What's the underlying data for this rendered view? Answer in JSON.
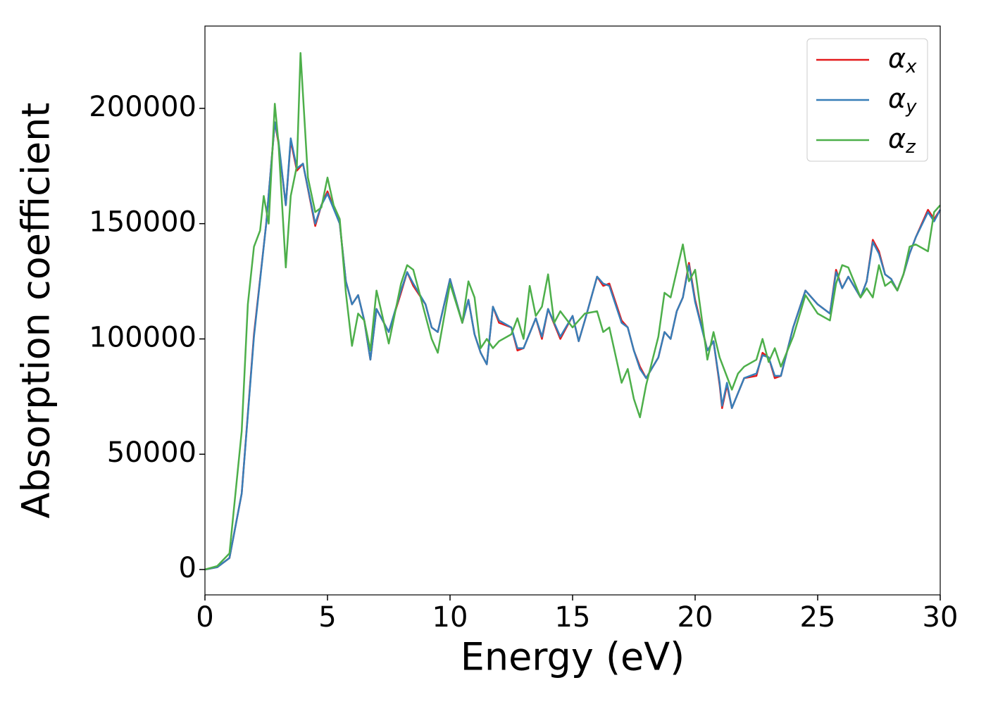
{
  "chart_data": {
    "type": "line",
    "xlabel": "Energy (eV)",
    "ylabel": "Absorption coefficient",
    "xlim": [
      0,
      30
    ],
    "xticks": [
      0,
      5,
      10,
      15,
      20,
      25,
      30
    ],
    "ylim": [
      -11000,
      235700
    ],
    "yticks": [
      0,
      50000,
      100000,
      150000,
      200000
    ],
    "legend": "upper right",
    "series": [
      {
        "name": "αx",
        "color": "#e41a1c",
        "x": [
          0,
          0.5,
          1,
          1.5,
          2,
          2.5,
          2.85,
          3,
          3.3,
          3.5,
          3.75,
          4,
          4.5,
          4.75,
          5,
          5.5,
          5.75,
          6,
          6.25,
          6.5,
          6.75,
          7,
          7.5,
          8,
          8.25,
          8.5,
          9,
          9.25,
          9.5,
          10,
          10.5,
          10.75,
          11,
          11.25,
          11.5,
          11.75,
          12,
          12.5,
          12.75,
          13,
          13.5,
          13.75,
          14,
          14.5,
          15,
          15.25,
          15.5,
          16,
          16.25,
          16.5,
          17,
          17.25,
          17.5,
          17.75,
          18,
          18.5,
          18.75,
          19,
          19.25,
          19.5,
          19.75,
          20,
          20.5,
          20.75,
          21,
          21.1,
          21.3,
          21.5,
          22,
          22.5,
          22.75,
          23,
          23.25,
          23.5,
          24,
          24.5,
          25,
          25.5,
          25.75,
          26,
          26.25,
          26.75,
          27,
          27.25,
          27.5,
          27.75,
          28,
          28.25,
          28.5,
          28.75,
          29,
          29.5,
          29.75,
          30
        ],
        "values": [
          0,
          1000,
          5000,
          33000,
          102000,
          150000,
          194000,
          185000,
          158000,
          186000,
          173000,
          176000,
          149000,
          158000,
          164000,
          150000,
          125000,
          115000,
          119000,
          108000,
          91000,
          113000,
          103000,
          120000,
          129000,
          123000,
          115000,
          105000,
          103000,
          126000,
          107000,
          117000,
          102000,
          94000,
          89000,
          114000,
          107000,
          105000,
          95000,
          96000,
          109000,
          100000,
          113000,
          100000,
          110000,
          99000,
          108000,
          127000,
          123000,
          124000,
          108000,
          105000,
          95000,
          88000,
          83000,
          92000,
          103000,
          100000,
          112000,
          118000,
          133000,
          117000,
          95000,
          99000,
          80000,
          70000,
          80000,
          70000,
          83000,
          84000,
          94000,
          92000,
          83000,
          84000,
          105000,
          121000,
          115000,
          111000,
          130000,
          122000,
          127000,
          118000,
          125000,
          143000,
          138000,
          128000,
          126000,
          121000,
          128000,
          137000,
          144000,
          156000,
          152000,
          156000
        ]
      },
      {
        "name": "αy",
        "color": "#377eb8",
        "x": [
          0,
          0.5,
          1,
          1.5,
          2,
          2.5,
          2.85,
          3,
          3.3,
          3.5,
          3.75,
          4,
          4.5,
          4.75,
          5,
          5.5,
          5.75,
          6,
          6.25,
          6.5,
          6.75,
          7,
          7.5,
          8,
          8.25,
          8.5,
          9,
          9.25,
          9.5,
          10,
          10.5,
          10.75,
          11,
          11.25,
          11.5,
          11.75,
          12,
          12.5,
          12.75,
          13,
          13.5,
          13.75,
          14,
          14.5,
          15,
          15.25,
          15.5,
          16,
          16.25,
          16.5,
          17,
          17.25,
          17.5,
          17.75,
          18,
          18.5,
          18.75,
          19,
          19.25,
          19.5,
          19.75,
          20,
          20.5,
          20.75,
          21,
          21.1,
          21.3,
          21.5,
          22,
          22.5,
          22.75,
          23,
          23.25,
          23.5,
          24,
          24.5,
          25,
          25.5,
          25.75,
          26,
          26.25,
          26.75,
          27,
          27.25,
          27.5,
          27.75,
          28,
          28.25,
          28.5,
          28.75,
          29,
          29.5,
          29.75,
          30
        ],
        "values": [
          0,
          1000,
          5000,
          33000,
          101000,
          150000,
          194000,
          186000,
          158000,
          187000,
          174000,
          176000,
          150000,
          158000,
          163000,
          150000,
          125000,
          115000,
          119000,
          108000,
          91000,
          113000,
          103000,
          121000,
          129000,
          124000,
          115000,
          105000,
          103000,
          126000,
          107000,
          117000,
          102000,
          94000,
          89000,
          114000,
          108000,
          105000,
          96000,
          96000,
          109000,
          101000,
          113000,
          101000,
          110000,
          99000,
          108000,
          127000,
          124000,
          123000,
          107000,
          105000,
          95000,
          87000,
          83000,
          92000,
          103000,
          100000,
          112000,
          118000,
          132000,
          116000,
          95000,
          99000,
          81000,
          71000,
          81000,
          70000,
          83000,
          85000,
          93000,
          92000,
          84000,
          84000,
          105000,
          121000,
          115000,
          111000,
          129000,
          122000,
          127000,
          118000,
          125000,
          142000,
          137000,
          128000,
          126000,
          121000,
          128000,
          137000,
          144000,
          155000,
          151000,
          156000
        ]
      },
      {
        "name": "αz",
        "color": "#4daf4a",
        "x": [
          0,
          0.5,
          1,
          1.5,
          1.75,
          2,
          2.25,
          2.4,
          2.6,
          2.85,
          3,
          3.3,
          3.5,
          3.75,
          3.9,
          4.2,
          4.5,
          4.75,
          5,
          5.25,
          5.5,
          5.75,
          6,
          6.25,
          6.5,
          6.75,
          7,
          7.5,
          8,
          8.25,
          8.5,
          9,
          9.25,
          9.5,
          10,
          10.5,
          10.75,
          11,
          11.25,
          11.5,
          11.75,
          12,
          12.5,
          12.75,
          13,
          13.25,
          13.5,
          13.75,
          14,
          14.25,
          14.5,
          15,
          15.5,
          16,
          16.25,
          16.5,
          17,
          17.25,
          17.5,
          17.75,
          18,
          18.5,
          18.75,
          19,
          19.5,
          19.75,
          20,
          20.5,
          20.75,
          21,
          21.5,
          21.75,
          22,
          22.5,
          22.75,
          23,
          23.25,
          23.5,
          24,
          24.5,
          25,
          25.5,
          25.75,
          26,
          26.25,
          26.75,
          27,
          27.25,
          27.5,
          27.75,
          28,
          28.25,
          28.5,
          28.75,
          29,
          29.5,
          29.75,
          30
        ],
        "values": [
          0,
          1500,
          7000,
          60000,
          115000,
          140000,
          147000,
          162000,
          150000,
          202000,
          185000,
          131000,
          162000,
          175000,
          224000,
          170000,
          155000,
          157000,
          170000,
          158000,
          152000,
          120000,
          97000,
          111000,
          108000,
          95000,
          121000,
          98000,
          124000,
          132000,
          130000,
          110000,
          100000,
          94000,
          124000,
          107000,
          125000,
          118000,
          96000,
          100000,
          96000,
          99000,
          102000,
          109000,
          100000,
          123000,
          110000,
          114000,
          128000,
          107000,
          112000,
          105000,
          111000,
          112000,
          103000,
          105000,
          81000,
          87000,
          74000,
          66000,
          80000,
          101000,
          120000,
          118000,
          141000,
          125000,
          130000,
          91000,
          103000,
          92000,
          78000,
          85000,
          88000,
          91000,
          100000,
          90000,
          96000,
          88000,
          101000,
          119000,
          111000,
          108000,
          124000,
          132000,
          131000,
          118000,
          122000,
          118000,
          132000,
          123000,
          125000,
          121000,
          128000,
          140000,
          141000,
          138000,
          155000,
          158000
        ]
      }
    ]
  }
}
